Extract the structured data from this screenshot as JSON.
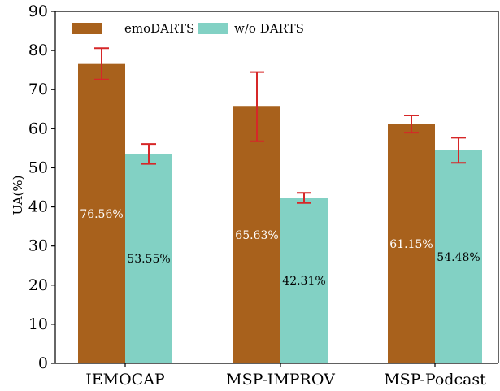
{
  "chart_data": {
    "type": "bar",
    "categories": [
      "IEMOCAP",
      "MSP-IMPROV",
      "MSP-Podcast"
    ],
    "series": [
      {
        "name": "emoDARTS",
        "color": "#a8611c",
        "values": [
          76.56,
          65.63,
          61.15
        ],
        "error_low": [
          72.6,
          56.8,
          59.0
        ],
        "error_high": [
          80.6,
          74.5,
          63.4
        ],
        "labels": [
          "76.56%",
          "65.63%",
          "61.15%"
        ],
        "label_color": "#ffffff"
      },
      {
        "name": "w/o DARTS",
        "color": "#82d1c4",
        "values": [
          53.55,
          42.31,
          54.48
        ],
        "error_low": [
          51.0,
          41.0,
          51.3
        ],
        "error_high": [
          56.1,
          43.6,
          57.7
        ],
        "labels": [
          "53.55%",
          "42.31%",
          "54.48%"
        ],
        "label_color": "#000000"
      }
    ],
    "ylabel": "UA(%)",
    "xlabel": "",
    "title": "",
    "ylim": [
      0,
      90
    ],
    "yticks": [
      "0",
      "10",
      "20",
      "30",
      "40",
      "50",
      "60",
      "70",
      "80",
      "90"
    ],
    "error_color": "#d62728",
    "legend_position": "top-left",
    "grid": false
  }
}
